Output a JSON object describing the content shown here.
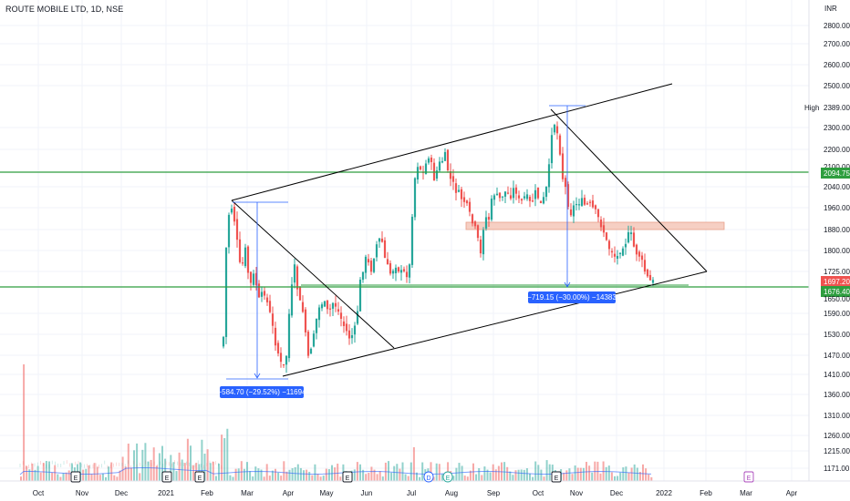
{
  "chart_data": {
    "type": "candlestick",
    "title": "ROUTE MOBILE LTD, 1D, NSE",
    "currency": "INR",
    "y_ticks": [
      "2800.00",
      "2700.00",
      "2600.00",
      "2500.00",
      "2300.00",
      "2200.00",
      "2040.00",
      "1960.00",
      "1880.00",
      "1800.00",
      "1725.00",
      "1590.00",
      "1530.00",
      "1470.00",
      "1410.00",
      "1360.00",
      "1310.00",
      "1260.00",
      "1215.00",
      "1171.00"
    ],
    "x_ticks": [
      "Oct",
      "Nov",
      "Dec",
      "2021",
      "Feb",
      "Mar",
      "Apr",
      "May",
      "Jun",
      "Jul",
      "Aug",
      "Sep",
      "Oct",
      "Nov",
      "Dec",
      "2022",
      "Feb",
      "Mar",
      "Apr"
    ],
    "price_tags": {
      "high_label": "High",
      "high_value": "2389.00",
      "resistance": "2094.75",
      "last": "1697.20",
      "support": "1676.40",
      "axis_top": "2100.00",
      "axis_mid": "1650.00"
    },
    "annotations": [
      {
        "text": "−584.70 (−29.52%) −11694"
      },
      {
        "text": "−719.15 (−30.00%) −14383"
      }
    ],
    "event_markers": [
      "E",
      "E",
      "E",
      "E",
      "D",
      "E",
      "E",
      "E"
    ],
    "colors": {
      "up": "#26a69a",
      "down": "#ef5350",
      "green_line": "#2e9e3f",
      "measure": "#2962ff",
      "box_fill": "#f6cfc3",
      "box_edge": "#e8a08a",
      "channel": "#000000",
      "event_purple": "#ab47bc",
      "event_blue": "#2962ff",
      "event_green": "#26a69a"
    }
  }
}
